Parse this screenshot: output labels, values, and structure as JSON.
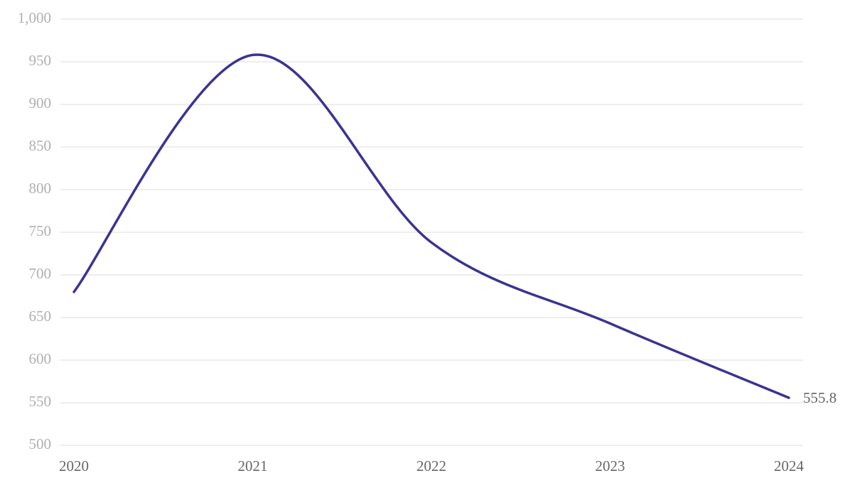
{
  "chart_data": {
    "type": "line",
    "categories": [
      "2020",
      "2021",
      "2022",
      "2023",
      "2024"
    ],
    "values": [
      680,
      958,
      738,
      643,
      555.8
    ],
    "color": "#3a3391",
    "ylim": [
      500,
      1000
    ],
    "yticks": [
      500,
      550,
      600,
      650,
      700,
      750,
      800,
      850,
      900,
      950,
      {
        "value": 1000,
        "label": "1,000"
      }
    ],
    "grid": true
  }
}
